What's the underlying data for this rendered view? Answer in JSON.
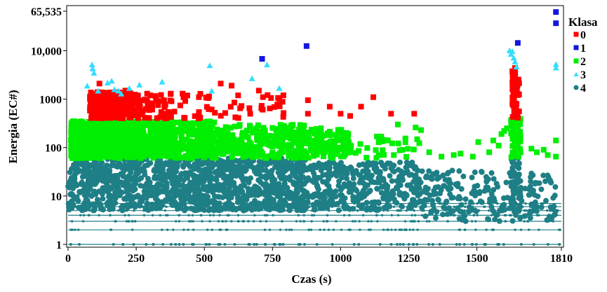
{
  "chart_data": {
    "type": "scatter",
    "title": "",
    "xlabel": "Czas (s)",
    "ylabel": "Energia  (EC#)",
    "x_ticks": [
      "0",
      "250",
      "500",
      "750",
      "1000",
      "1250",
      "1500",
      "1810"
    ],
    "x_tick_values": [
      0,
      250,
      500,
      750,
      1000,
      1250,
      1500,
      1810
    ],
    "y_ticks": [
      "1",
      "10",
      "100",
      "1000",
      "10,000",
      "65,535"
    ],
    "y_tick_values": [
      1,
      10,
      100,
      1000,
      10000,
      65535
    ],
    "xlim": [
      0,
      1810
    ],
    "ylim": [
      1,
      65535
    ],
    "y_scale": "log",
    "grid": false,
    "legend": {
      "title": "Klasa",
      "position": "right",
      "entries": [
        {
          "label": "0",
          "color": "#ff0000",
          "marker": "square"
        },
        {
          "label": "1",
          "color": "#1515e0",
          "marker": "square"
        },
        {
          "label": "2",
          "color": "#00ee00",
          "marker": "square"
        },
        {
          "label": "3",
          "color": "#33ddff",
          "marker": "triangle"
        },
        {
          "label": "4",
          "color": "#1e7f86",
          "marker": "circle"
        }
      ]
    },
    "series": [
      {
        "name": "1",
        "color": "#1515e0",
        "marker": "square",
        "points": [
          [
            712,
            6800
          ],
          [
            875,
            12500
          ],
          [
            1650,
            14500
          ],
          [
            1790,
            37000
          ],
          [
            1790,
            63000
          ]
        ]
      },
      {
        "name": "3",
        "color": "#33ddff",
        "marker": "triangle",
        "points": [
          [
            88,
            5200
          ],
          [
            90,
            4300
          ],
          [
            95,
            3500
          ],
          [
            70,
            1900
          ],
          [
            110,
            1500
          ],
          [
            145,
            2200
          ],
          [
            160,
            2400
          ],
          [
            170,
            1600
          ],
          [
            185,
            1500
          ],
          [
            195,
            1300
          ],
          [
            225,
            1700
          ],
          [
            262,
            2000
          ],
          [
            345,
            2300
          ],
          [
            520,
            5000
          ],
          [
            527,
            1500
          ],
          [
            675,
            2700
          ],
          [
            730,
            5200
          ],
          [
            775,
            1700
          ],
          [
            1620,
            10200
          ],
          [
            1625,
            8600
          ],
          [
            1630,
            9800
          ],
          [
            1635,
            7200
          ],
          [
            1640,
            6000
          ],
          [
            1645,
            4700
          ],
          [
            1790,
            5300
          ],
          [
            1790,
            4500
          ]
        ]
      },
      {
        "name": "0",
        "color": "#ff0000",
        "marker": "square",
        "density": [
          {
            "x": [
              80,
              240
            ],
            "y": [
              400,
              1400
            ],
            "n": 360
          },
          {
            "x": [
              240,
              380
            ],
            "y": [
              400,
              1300
            ],
            "n": 55
          },
          {
            "x": [
              380,
              800
            ],
            "y": [
              400,
              1300
            ],
            "n": 45
          },
          {
            "x": [
              1630,
              1655
            ],
            "y": [
              400,
              4000
            ],
            "n": 60
          }
        ],
        "points": [
          [
            115,
            2100
          ],
          [
            210,
            1500
          ],
          [
            290,
            1300
          ],
          [
            420,
            1300
          ],
          [
            480,
            1100
          ],
          [
            560,
            2100
          ],
          [
            600,
            1900
          ],
          [
            700,
            1500
          ],
          [
            715,
            1100
          ],
          [
            790,
            1200
          ],
          [
            880,
            950
          ],
          [
            880,
            500
          ],
          [
            960,
            700
          ],
          [
            1000,
            500
          ],
          [
            1035,
            450
          ],
          [
            1075,
            700
          ],
          [
            1120,
            1100
          ],
          [
            1185,
            500
          ],
          [
            1270,
            500
          ],
          [
            1640,
            4400
          ]
        ]
      },
      {
        "name": "2",
        "color": "#00ee00",
        "marker": "square",
        "density": [
          {
            "x": [
              10,
              280
            ],
            "y": [
              60,
              350
            ],
            "n": 900
          },
          {
            "x": [
              280,
              560
            ],
            "y": [
              60,
              350
            ],
            "n": 320
          },
          {
            "x": [
              560,
              880
            ],
            "y": [
              60,
              300
            ],
            "n": 260
          },
          {
            "x": [
              880,
              1040
            ],
            "y": [
              60,
              250
            ],
            "n": 110
          },
          {
            "x": [
              1040,
              1300
            ],
            "y": [
              60,
              180
            ],
            "n": 30
          },
          {
            "x": [
              1625,
              1660
            ],
            "y": [
              60,
              400
            ],
            "n": 70
          }
        ],
        "points": [
          [
            1210,
            300
          ],
          [
            1275,
            260
          ],
          [
            1295,
            230
          ],
          [
            1325,
            80
          ],
          [
            1370,
            65
          ],
          [
            1415,
            70
          ],
          [
            1440,
            75
          ],
          [
            1485,
            65
          ],
          [
            1505,
            130
          ],
          [
            1545,
            80
          ],
          [
            1560,
            140
          ],
          [
            1580,
            110
          ],
          [
            1590,
            190
          ],
          [
            1600,
            220
          ],
          [
            1610,
            250
          ],
          [
            1700,
            95
          ],
          [
            1720,
            80
          ],
          [
            1745,
            90
          ],
          [
            1760,
            70
          ],
          [
            1790,
            140
          ],
          [
            1790,
            65
          ]
        ]
      },
      {
        "name": "4",
        "color": "#1e7f86",
        "marker": "circle",
        "rows": [
          1,
          2,
          3,
          4,
          5,
          6,
          7
        ],
        "rows_x": [
          0,
          1810
        ],
        "density": [
          {
            "x": [
              0,
              880
            ],
            "y": [
              5,
              60
            ],
            "n": 1200
          },
          {
            "x": [
              880,
              1300
            ],
            "y": [
              5,
              50
            ],
            "n": 350
          },
          {
            "x": [
              1300,
              1560
            ],
            "y": [
              3,
              35
            ],
            "n": 120
          },
          {
            "x": [
              1560,
              1790
            ],
            "y": [
              3,
              30
            ],
            "n": 90
          },
          {
            "x": [
              1625,
              1660
            ],
            "y": [
              5,
              60
            ],
            "n": 60
          }
        ],
        "points": []
      }
    ]
  }
}
